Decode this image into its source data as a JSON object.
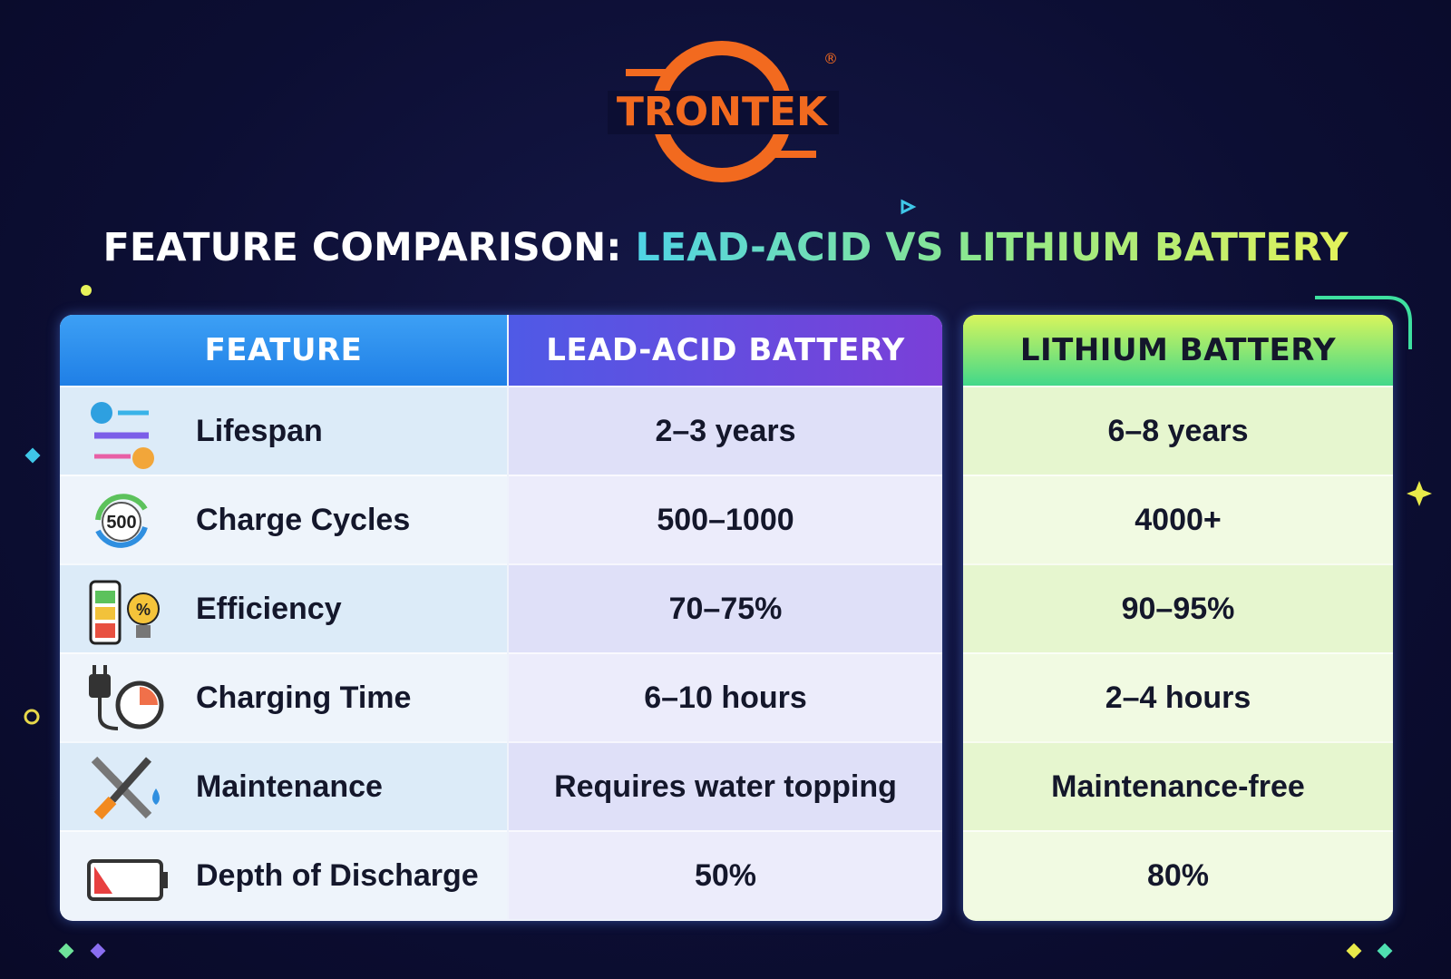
{
  "logo": {
    "name": "TRONTEK",
    "registered": "®"
  },
  "title": {
    "lead": "FEATURE COMPARISON:",
    "highlight": "LEAD-ACID VS LITHIUM BATTERY"
  },
  "table": {
    "headers": [
      "FEATURE",
      "LEAD-ACID BATTERY",
      "LITHIUM BATTERY"
    ],
    "rows": [
      {
        "feature": "Lifespan",
        "lead_acid": "2–3 years",
        "lithium": "6–8 years"
      },
      {
        "feature": "Charge Cycles",
        "icon_text": "500",
        "lead_acid": "500–1000",
        "lithium": "4000+"
      },
      {
        "feature": "Efficiency",
        "icon_text": "%",
        "lead_acid": "70–75%",
        "lithium": "90–95%"
      },
      {
        "feature": "Charging Time",
        "lead_acid": "6–10 hours",
        "lithium": "2–4 hours"
      },
      {
        "feature": "Maintenance",
        "lead_acid": "Requires water topping",
        "lithium": "Maintenance-free"
      },
      {
        "feature": "Depth of Discharge",
        "lead_acid": "50%",
        "lithium": "80%"
      }
    ]
  }
}
